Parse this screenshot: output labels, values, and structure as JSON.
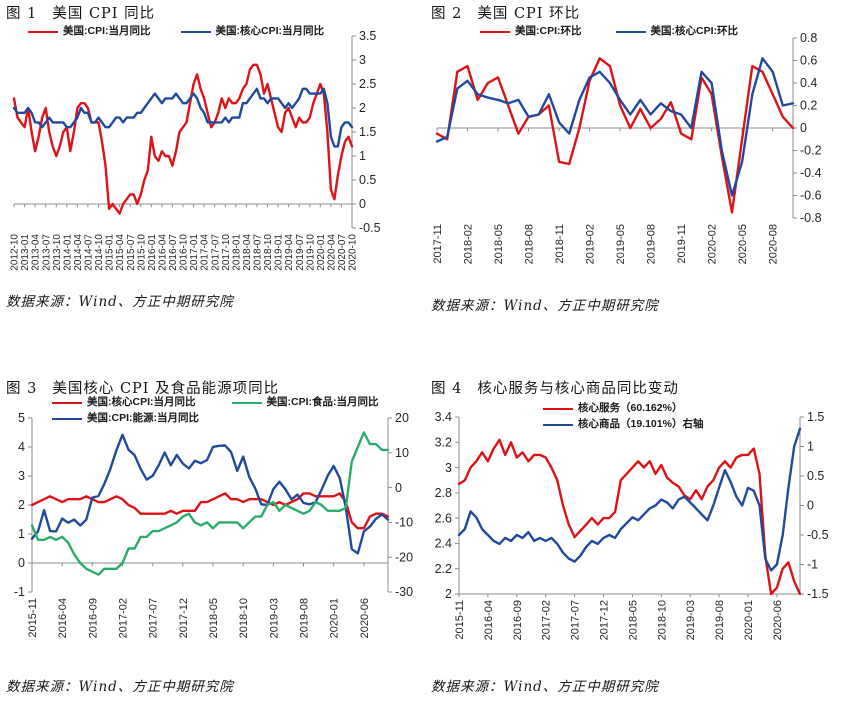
{
  "colors": {
    "red": "#dd1318",
    "blue": "#21499c",
    "green": "#2bac6d",
    "axis": "#8c8c8c",
    "text": "#262626"
  },
  "chart_data": [
    {
      "fig_label": "图 1",
      "title": "美国 CPI 同比",
      "type": "line",
      "source": "数据来源：Wind、方正中期研究院",
      "label_every": 3,
      "x_labels": [
        "2012-10",
        "2013-01",
        "2013-04",
        "2013-07",
        "2013-10",
        "2014-01",
        "2014-04",
        "2014-07",
        "2014-10",
        "2015-01",
        "2015-04",
        "2015-07",
        "2015-10",
        "2016-01",
        "2016-04",
        "2016-07",
        "2016-10",
        "2017-01",
        "2017-04",
        "2017-07",
        "2017-10",
        "2018-01",
        "2018-04",
        "2018-07",
        "2018-10",
        "2019-01",
        "2019-04",
        "2019-07",
        "2019-10",
        "2020-01",
        "2020-04",
        "2020-07",
        "2020-10"
      ],
      "axes": {
        "right": {
          "min": -0.5,
          "max": 3.5,
          "ticks": [
            "3.5",
            "3",
            "2.5",
            "2",
            "1.5",
            "1",
            "0.5",
            "0",
            "-0.5"
          ]
        }
      },
      "baseline": {
        "axis": "right",
        "value": 0
      },
      "series": [
        {
          "name": "美国:CPI:当月同比",
          "color": "red",
          "axis": "right",
          "values": [
            2.2,
            1.8,
            1.7,
            1.6,
            2.0,
            1.5,
            1.1,
            1.4,
            1.8,
            2.0,
            1.5,
            1.2,
            1.0,
            1.2,
            1.5,
            1.6,
            1.1,
            1.5,
            2.0,
            2.1,
            2.1,
            2.0,
            1.7,
            1.7,
            1.7,
            1.3,
            0.8,
            -0.1,
            0.0,
            -0.1,
            -0.2,
            0.0,
            0.1,
            0.2,
            0.2,
            0.0,
            0.2,
            0.5,
            0.7,
            1.4,
            1.0,
            0.9,
            1.1,
            1.0,
            1.0,
            0.8,
            1.1,
            1.5,
            1.6,
            1.7,
            2.1,
            2.5,
            2.7,
            2.4,
            2.2,
            1.9,
            1.6,
            1.7,
            1.9,
            2.2,
            2.0,
            2.2,
            2.1,
            2.1,
            2.2,
            2.4,
            2.5,
            2.8,
            2.9,
            2.9,
            2.7,
            2.3,
            2.5,
            2.2,
            1.9,
            1.6,
            1.5,
            1.9,
            2.0,
            1.8,
            1.6,
            1.8,
            1.7,
            1.7,
            1.8,
            2.1,
            2.3,
            2.5,
            2.3,
            1.5,
            0.3,
            0.1,
            0.6,
            1.0,
            1.3,
            1.4,
            1.2
          ]
        },
        {
          "name": "美国:核心CPI:当月同比",
          "color": "blue",
          "axis": "right",
          "values": [
            2.0,
            1.9,
            1.9,
            1.9,
            2.0,
            1.9,
            1.7,
            1.7,
            1.6,
            1.7,
            1.8,
            1.7,
            1.7,
            1.7,
            1.7,
            1.6,
            1.6,
            1.7,
            1.8,
            2.0,
            1.9,
            1.9,
            1.7,
            1.7,
            1.8,
            1.7,
            1.6,
            1.6,
            1.7,
            1.8,
            1.8,
            1.7,
            1.8,
            1.8,
            1.8,
            1.9,
            1.9,
            2.0,
            2.1,
            2.2,
            2.3,
            2.2,
            2.1,
            2.2,
            2.2,
            2.2,
            2.3,
            2.2,
            2.1,
            2.1,
            2.2,
            2.3,
            2.2,
            2.0,
            1.9,
            1.7,
            1.7,
            1.7,
            1.7,
            1.7,
            1.8,
            1.7,
            1.8,
            1.8,
            1.8,
            2.1,
            2.1,
            2.2,
            2.3,
            2.4,
            2.2,
            2.2,
            2.1,
            2.2,
            2.2,
            2.2,
            2.1,
            2.0,
            2.1,
            2.0,
            2.1,
            2.2,
            2.4,
            2.4,
            2.3,
            2.3,
            2.3,
            2.3,
            2.4,
            2.1,
            1.4,
            1.2,
            1.2,
            1.6,
            1.7,
            1.7,
            1.6
          ]
        }
      ]
    },
    {
      "fig_label": "图 2",
      "title": "美国 CPI 环比",
      "type": "line",
      "source": "数据来源：Wind、方正中期研究院",
      "label_every": 3,
      "x_labels": [
        "2017-11",
        "2018-02",
        "2018-05",
        "2018-08",
        "2018-11",
        "2019-02",
        "2019-05",
        "2019-08",
        "2019-11",
        "2020-02",
        "2020-05",
        "2020-08"
      ],
      "axes": {
        "right": {
          "min": -0.8,
          "max": 0.8,
          "ticks": [
            "0.8",
            "0.6",
            "0.4",
            "0.2",
            "0",
            "-0.2",
            "-0.4",
            "-0.6",
            "-0.8"
          ]
        }
      },
      "baseline": {
        "axis": "right",
        "value": 0
      },
      "series": [
        {
          "name": "美国:CPI:环比",
          "color": "red",
          "axis": "right",
          "values": [
            -0.05,
            -0.1,
            0.5,
            0.55,
            0.25,
            0.4,
            0.45,
            0.2,
            -0.05,
            0.1,
            0.12,
            0.2,
            -0.3,
            -0.32,
            0.0,
            0.42,
            0.62,
            0.55,
            0.2,
            0.0,
            0.17,
            0.0,
            0.08,
            0.23,
            -0.05,
            -0.1,
            0.45,
            0.3,
            -0.25,
            -0.75,
            -0.1,
            0.55,
            0.5,
            0.3,
            0.1,
            0.0
          ]
        },
        {
          "name": "美国:核心CPI:环比",
          "color": "blue",
          "axis": "right",
          "values": [
            -0.12,
            -0.08,
            0.35,
            0.42,
            0.3,
            0.27,
            0.25,
            0.22,
            0.25,
            0.1,
            0.12,
            0.3,
            0.05,
            -0.05,
            0.25,
            0.45,
            0.5,
            0.4,
            0.25,
            0.12,
            0.25,
            0.12,
            0.22,
            0.15,
            0.12,
            0.0,
            0.5,
            0.4,
            -0.2,
            -0.6,
            -0.3,
            0.3,
            0.62,
            0.5,
            0.2,
            0.22
          ]
        }
      ]
    },
    {
      "fig_label": "图 3",
      "title": "美国核心 CPI 及食品能源项同比",
      "type": "line",
      "source": "数据来源：Wind、方正中期研究院",
      "label_every": 5,
      "x_labels": [
        "2015-11",
        "2016-04",
        "2016-09",
        "2017-02",
        "2017-07",
        "2017-12",
        "2018-05",
        "2018-10",
        "2019-03",
        "2019-08",
        "2020-01",
        "2020-06"
      ],
      "axes": {
        "left": {
          "min": -1,
          "max": 5,
          "ticks": [
            "5",
            "4",
            "3",
            "2",
            "1",
            "0",
            "-1"
          ]
        },
        "right": {
          "min": -30,
          "max": 20,
          "ticks": [
            "20",
            "10",
            "0",
            "-10",
            "-20",
            "-30"
          ]
        }
      },
      "baseline": {
        "axis": "left",
        "value": 0
      },
      "series": [
        {
          "name": "美国:核心CPI:当月同比",
          "color": "red",
          "axis": "left",
          "values": [
            2.0,
            2.1,
            2.2,
            2.3,
            2.2,
            2.1,
            2.2,
            2.2,
            2.2,
            2.3,
            2.2,
            2.1,
            2.1,
            2.2,
            2.3,
            2.2,
            2.0,
            1.9,
            1.7,
            1.7,
            1.7,
            1.7,
            1.7,
            1.8,
            1.7,
            1.8,
            1.8,
            1.8,
            2.1,
            2.1,
            2.2,
            2.3,
            2.4,
            2.2,
            2.2,
            2.1,
            2.2,
            2.2,
            2.2,
            2.1,
            2.0,
            2.1,
            2.0,
            2.1,
            2.2,
            2.4,
            2.4,
            2.3,
            2.3,
            2.3,
            2.3,
            2.4,
            2.1,
            1.4,
            1.2,
            1.2,
            1.6,
            1.7,
            1.7,
            1.6
          ]
        },
        {
          "name": "美国:CPI:能源:当月同比",
          "color": "blue",
          "axis": "right",
          "values": [
            -14.7,
            -12.6,
            -6.5,
            -12.5,
            -12.6,
            -8.9,
            -10.1,
            -9.2,
            -10.9,
            -9.2,
            -2.9,
            -2.4,
            1.1,
            5.4,
            10.8,
            15.2,
            10.9,
            9.3,
            5.4,
            2.3,
            3.4,
            6.4,
            10.1,
            6.4,
            9.4,
            6.9,
            5.5,
            7.7,
            7.0,
            7.9,
            11.7,
            12.0,
            12.1,
            10.2,
            4.8,
            8.9,
            3.1,
            -0.3,
            -4.8,
            -5.0,
            -0.4,
            1.7,
            -0.5,
            -3.4,
            -2.0,
            -4.4,
            -4.8,
            -4.2,
            -0.6,
            3.4,
            6.2,
            2.8,
            -5.7,
            -17.7,
            -18.9,
            -12.6,
            -11.2,
            -9.0,
            -7.7,
            -9.2
          ]
        },
        {
          "name": "美国:CPI:食品:当月同比",
          "color": "green",
          "axis": "left",
          "values": [
            1.3,
            0.8,
            0.8,
            0.9,
            0.8,
            0.9,
            0.7,
            0.3,
            0.0,
            -0.2,
            -0.3,
            -0.4,
            -0.2,
            -0.2,
            -0.2,
            0.0,
            0.5,
            0.5,
            0.9,
            0.9,
            1.1,
            1.1,
            1.2,
            1.3,
            1.4,
            1.6,
            1.7,
            1.4,
            1.3,
            1.4,
            1.2,
            1.4,
            1.4,
            1.4,
            1.4,
            1.2,
            1.4,
            1.6,
            1.6,
            2.0,
            2.1,
            1.8,
            2.0,
            1.9,
            1.8,
            1.7,
            1.8,
            2.1,
            2.0,
            1.8,
            1.8,
            1.8,
            1.9,
            3.5,
            4.0,
            4.5,
            4.1,
            4.1,
            3.9,
            3.9
          ]
        }
      ]
    },
    {
      "fig_label": "图 4",
      "title": "核心服务与核心商品同比变动",
      "type": "line",
      "source": "数据来源：Wind、方正中期研究院",
      "label_every": 5,
      "x_labels": [
        "2015-11",
        "2016-04",
        "2016-09",
        "2017-02",
        "2017-07",
        "2017-12",
        "2018-05",
        "2018-10",
        "2019-03",
        "2019-08",
        "2020-01",
        "2020-06"
      ],
      "axes": {
        "left": {
          "min": 2,
          "max": 3.4,
          "ticks": [
            "3.4",
            "3.2",
            "3",
            "2.8",
            "2.6",
            "2.4",
            "2.2",
            "2"
          ]
        },
        "right": {
          "min": -1.5,
          "max": 1.5,
          "ticks": [
            "1.5",
            "1",
            "0.5",
            "0",
            "-0.5",
            "-1",
            "-1.5"
          ]
        }
      },
      "baseline": {
        "axis": "left",
        "value": 2
      },
      "series": [
        {
          "name": "核心服务（60.162%）",
          "color": "red",
          "axis": "left",
          "values": [
            2.87,
            2.9,
            3.0,
            3.05,
            3.12,
            3.05,
            3.15,
            3.22,
            3.1,
            3.2,
            3.08,
            3.12,
            3.05,
            3.1,
            3.1,
            3.08,
            3.0,
            2.9,
            2.7,
            2.55,
            2.45,
            2.5,
            2.55,
            2.6,
            2.55,
            2.6,
            2.6,
            2.65,
            2.9,
            2.95,
            3.0,
            3.05,
            3.0,
            3.05,
            2.95,
            3.02,
            2.92,
            2.88,
            2.85,
            2.78,
            2.75,
            2.82,
            2.75,
            2.85,
            2.9,
            3.0,
            3.05,
            3.0,
            3.08,
            3.1,
            3.1,
            3.15,
            2.95,
            2.3,
            2.0,
            2.05,
            2.2,
            2.25,
            2.1,
            2.0
          ]
        },
        {
          "name": "核心商品（19.101%）右轴",
          "color": "blue",
          "axis": "right",
          "values": [
            -0.5,
            -0.4,
            -0.1,
            -0.2,
            -0.4,
            -0.5,
            -0.6,
            -0.65,
            -0.55,
            -0.6,
            -0.5,
            -0.55,
            -0.45,
            -0.6,
            -0.55,
            -0.6,
            -0.55,
            -0.65,
            -0.8,
            -0.9,
            -0.95,
            -0.85,
            -0.7,
            -0.6,
            -0.65,
            -0.55,
            -0.5,
            -0.55,
            -0.4,
            -0.3,
            -0.2,
            -0.25,
            -0.15,
            -0.05,
            0.0,
            0.1,
            0.05,
            -0.05,
            0.1,
            0.15,
            0.05,
            -0.05,
            -0.15,
            -0.25,
            0.0,
            0.3,
            0.6,
            0.4,
            0.15,
            0.0,
            0.3,
            0.25,
            0.0,
            -0.9,
            -1.1,
            -1.0,
            -0.5,
            0.3,
            1.0,
            1.3
          ]
        }
      ]
    }
  ]
}
